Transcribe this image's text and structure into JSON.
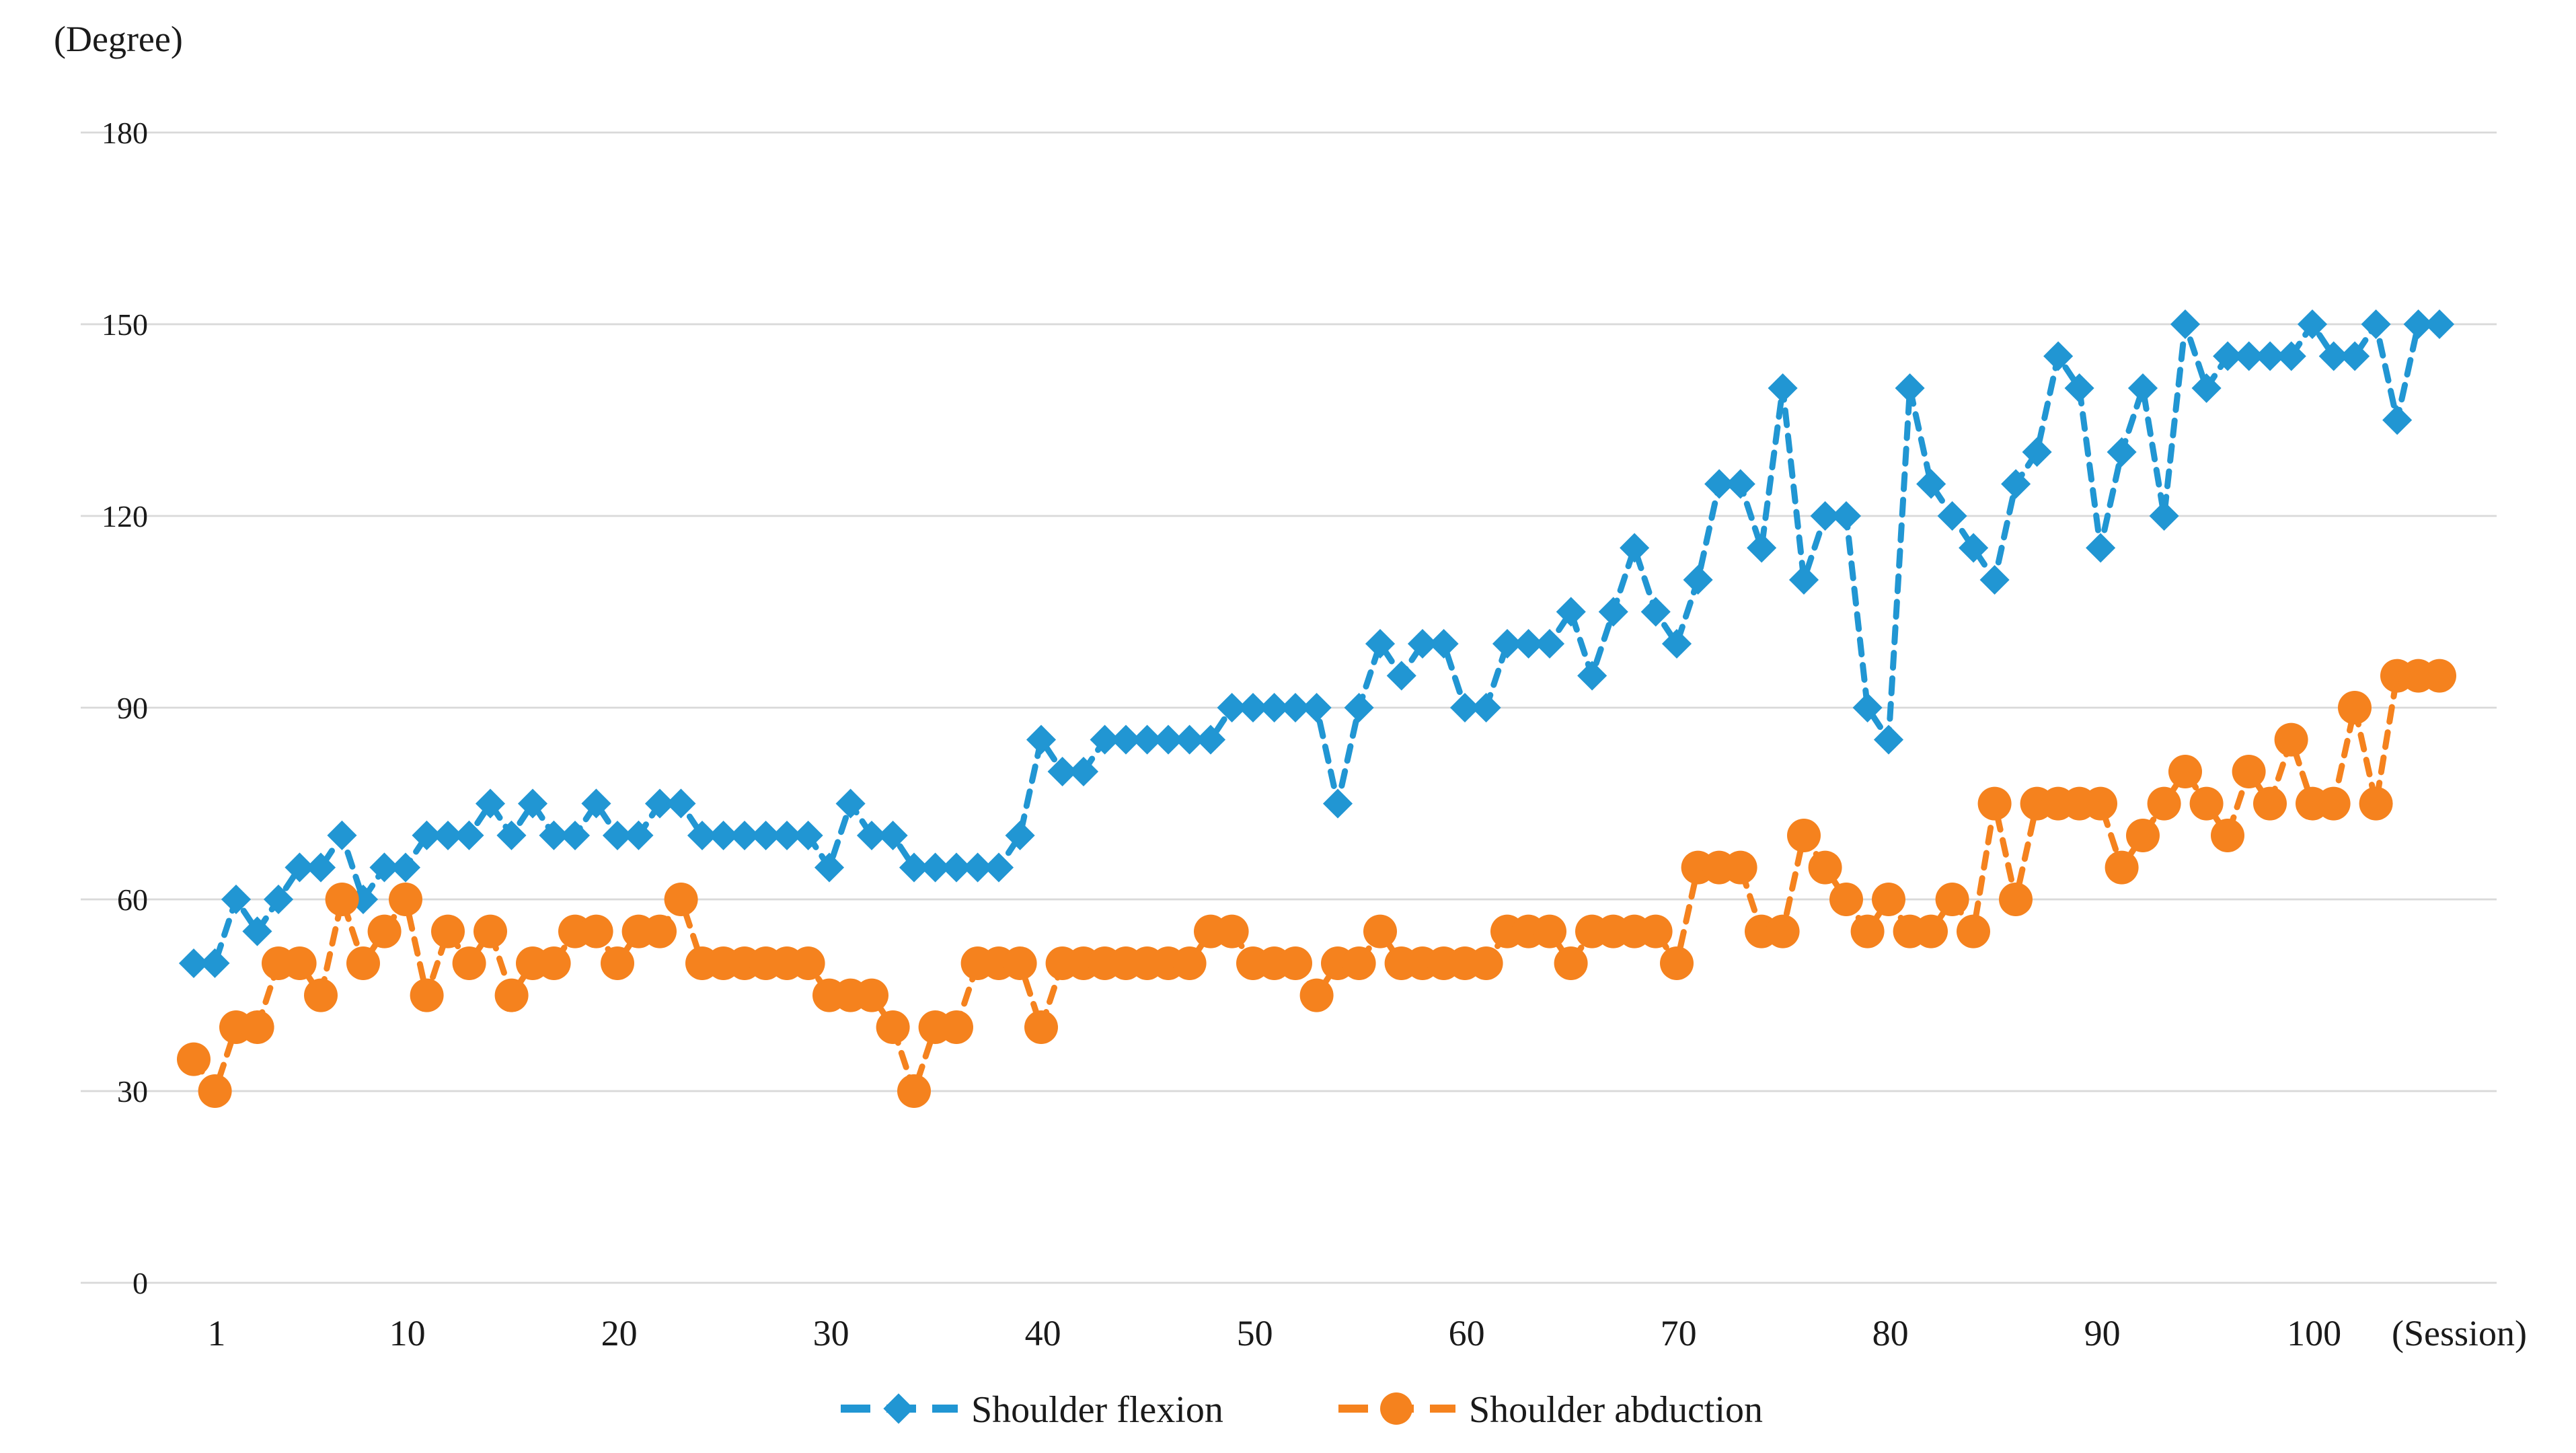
{
  "chart_data": {
    "type": "line",
    "title": "",
    "ylabel": "(Degree)",
    "xlabel": "(Session)",
    "ylim": [
      0,
      180
    ],
    "grid": "horizontal",
    "legend_position": "bottom-center",
    "y_ticks": [
      0,
      30,
      60,
      90,
      120,
      150,
      180
    ],
    "x_ticks": [
      1,
      10,
      20,
      30,
      40,
      50,
      60,
      70,
      80,
      90,
      100
    ],
    "session_count": 107,
    "series": [
      {
        "name": "Shoulder flexion",
        "color": "#2196d3",
        "marker": "diamond",
        "values": [
          50,
          50,
          60,
          55,
          60,
          65,
          65,
          70,
          60,
          65,
          65,
          70,
          70,
          70,
          75,
          70,
          75,
          70,
          70,
          75,
          70,
          70,
          75,
          75,
          70,
          70,
          70,
          70,
          70,
          70,
          65,
          75,
          70,
          70,
          65,
          65,
          65,
          65,
          65,
          70,
          85,
          80,
          80,
          85,
          85,
          85,
          85,
          85,
          85,
          90,
          90,
          90,
          90,
          90,
          75,
          90,
          100,
          95,
          100,
          100,
          90,
          90,
          100,
          100,
          100,
          105,
          95,
          105,
          115,
          105,
          100,
          110,
          125,
          125,
          115,
          140,
          110,
          120,
          120,
          90,
          85,
          140,
          125,
          120,
          115,
          110,
          125,
          130,
          145,
          140,
          115,
          130,
          140,
          120,
          150,
          140,
          145,
          145,
          145,
          145,
          150,
          145,
          145,
          150,
          135,
          150,
          150
        ]
      },
      {
        "name": "Shoulder abduction",
        "color": "#f5821e",
        "marker": "circle",
        "values": [
          35,
          30,
          40,
          40,
          50,
          50,
          45,
          60,
          50,
          55,
          60,
          45,
          55,
          50,
          55,
          45,
          50,
          50,
          55,
          55,
          50,
          55,
          55,
          60,
          50,
          50,
          50,
          50,
          50,
          50,
          45,
          45,
          45,
          40,
          30,
          40,
          40,
          50,
          50,
          50,
          40,
          50,
          50,
          50,
          50,
          50,
          50,
          50,
          55,
          55,
          50,
          50,
          50,
          45,
          50,
          50,
          55,
          50,
          50,
          50,
          50,
          50,
          55,
          55,
          55,
          50,
          55,
          55,
          55,
          55,
          50,
          65,
          65,
          65,
          55,
          55,
          70,
          65,
          60,
          55,
          60,
          55,
          55,
          60,
          55,
          75,
          60,
          75,
          75,
          75,
          75,
          65,
          70,
          75,
          80,
          75,
          70,
          80,
          75,
          85,
          75,
          75,
          90,
          75,
          95,
          95,
          95
        ]
      }
    ]
  },
  "labels": {
    "degree_label": "(Degree)",
    "session_label": "(Session)"
  },
  "legend": {
    "flexion_label": "Shoulder flexion",
    "abduction_label": "Shoulder abduction"
  },
  "colors": {
    "flexion": "#2196d3",
    "abduction": "#f5821e",
    "gridline": "#d9d9d9",
    "text": "#1a1a1a",
    "background": "#ffffff"
  }
}
